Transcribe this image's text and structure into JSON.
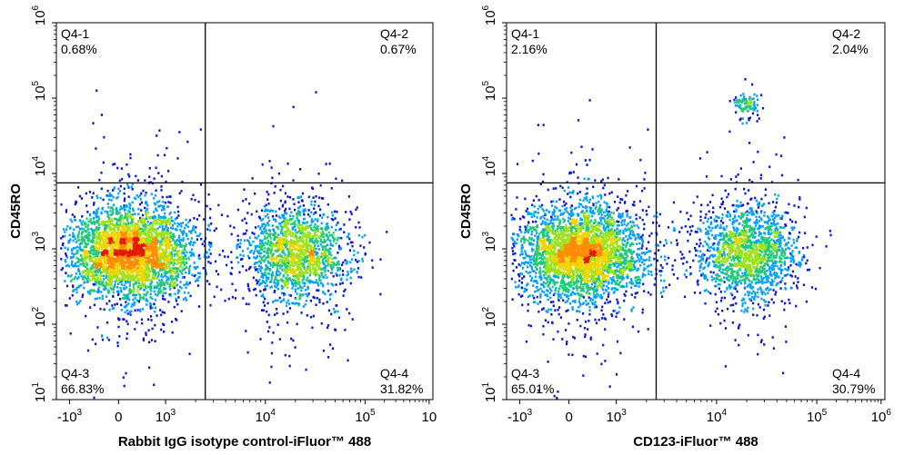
{
  "chart_data": [
    {
      "type": "scatter",
      "subtype": "flow-cytometry-density",
      "xlabel": "Rabbit IgG isotype control-iFluor™ 488",
      "ylabel": "CD45RO",
      "x_scale": "biexponential",
      "y_scale": "log",
      "xlim": [
        "-10^3",
        "10^6"
      ],
      "ylim": [
        10,
        1000000
      ],
      "x_ticks": [
        {
          "base": "-10",
          "exp": "3"
        },
        {
          "base": "0",
          "exp": ""
        },
        {
          "base": "10",
          "exp": "3"
        },
        {
          "base": "10",
          "exp": "4"
        },
        {
          "base": "10",
          "exp": "5"
        },
        {
          "base": "10",
          "exp": ""
        }
      ],
      "y_ticks": [
        {
          "base": "10",
          "exp": "1"
        },
        {
          "base": "10",
          "exp": "2"
        },
        {
          "base": "10",
          "exp": "3"
        },
        {
          "base": "10",
          "exp": "4"
        },
        {
          "base": "10",
          "exp": "5"
        },
        {
          "base": "10",
          "exp": "6"
        }
      ],
      "gate": {
        "x": 2500,
        "y": 7500
      },
      "quadrants": [
        {
          "name": "Q4-1",
          "percent": "0.68%",
          "position": "top-left"
        },
        {
          "name": "Q4-2",
          "percent": "0.67%",
          "position": "top-right"
        },
        {
          "name": "Q4-3",
          "percent": "66.83%",
          "position": "bottom-left"
        },
        {
          "name": "Q4-4",
          "percent": "31.82%",
          "position": "bottom-right"
        }
      ],
      "populations": [
        {
          "x_center": 250,
          "y_center": 900,
          "weight": 0.67
        },
        {
          "x_center": 20000,
          "y_center": 900,
          "weight": 0.32
        }
      ],
      "colors": [
        "#0a14d8",
        "#00a0ff",
        "#22c87a",
        "#9be21a",
        "#f0d400",
        "#ff8c00",
        "#e41a00"
      ]
    },
    {
      "type": "scatter",
      "subtype": "flow-cytometry-density",
      "xlabel": "CD123-iFluor™ 488",
      "ylabel": "CD45RO",
      "x_scale": "biexponential",
      "y_scale": "log",
      "xlim": [
        "-10^3",
        "10^6"
      ],
      "ylim": [
        10,
        1000000
      ],
      "x_ticks": [
        {
          "base": "-10",
          "exp": "3"
        },
        {
          "base": "0",
          "exp": ""
        },
        {
          "base": "10",
          "exp": "3"
        },
        {
          "base": "10",
          "exp": "4"
        },
        {
          "base": "10",
          "exp": "5"
        },
        {
          "base": "10",
          "exp": "6"
        }
      ],
      "y_ticks": [
        {
          "base": "10",
          "exp": "1"
        },
        {
          "base": "10",
          "exp": "2"
        },
        {
          "base": "10",
          "exp": "3"
        },
        {
          "base": "10",
          "exp": "4"
        },
        {
          "base": "10",
          "exp": "5"
        },
        {
          "base": "10",
          "exp": "6"
        }
      ],
      "gate": {
        "x": 2500,
        "y": 7500
      },
      "quadrants": [
        {
          "name": "Q4-1",
          "percent": "2.16%",
          "position": "top-left"
        },
        {
          "name": "Q4-2",
          "percent": "2.04%",
          "position": "top-right"
        },
        {
          "name": "Q4-3",
          "percent": "65.01%",
          "position": "bottom-left"
        },
        {
          "name": "Q4-4",
          "percent": "30.79%",
          "position": "bottom-right"
        }
      ],
      "populations": [
        {
          "x_center": 250,
          "y_center": 900,
          "weight": 0.65
        },
        {
          "x_center": 20000,
          "y_center": 900,
          "weight": 0.31
        },
        {
          "x_center": 20000,
          "y_center": 85000,
          "weight": 0.02
        }
      ],
      "colors": [
        "#0a14d8",
        "#00a0ff",
        "#22c87a",
        "#9be21a",
        "#f0d400",
        "#ff8c00",
        "#e41a00"
      ]
    }
  ]
}
